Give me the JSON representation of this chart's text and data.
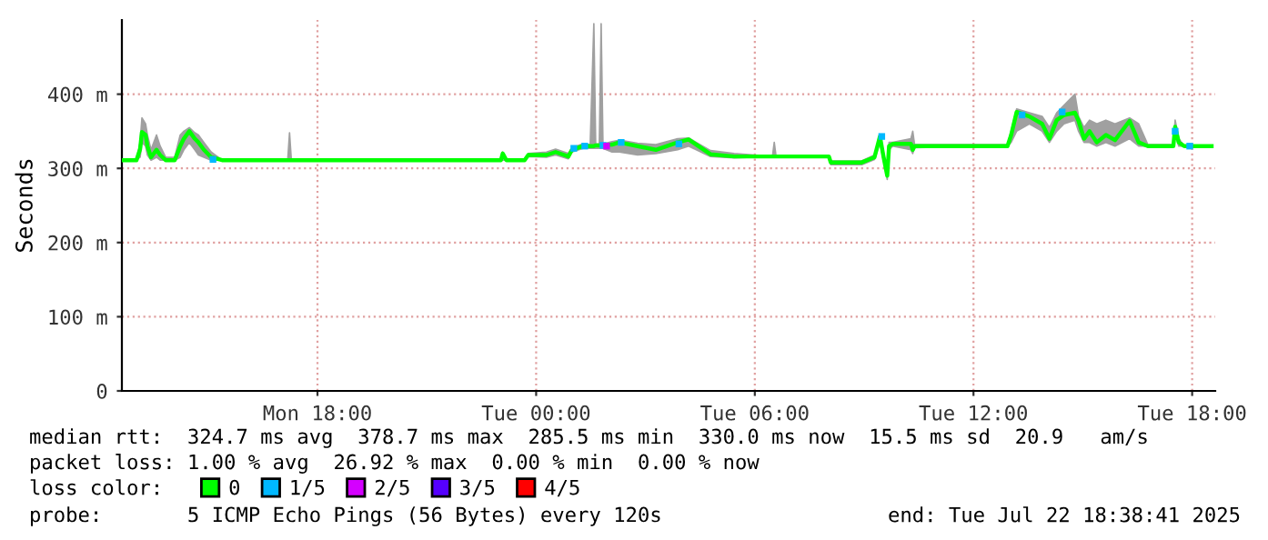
{
  "chart_data": {
    "type": "line",
    "ylabel": "Seconds",
    "xlim": [
      "2025-07-21T12:38",
      "2025-07-22T18:38"
    ],
    "xticks": [
      {
        "value": "2025-07-21T18:00",
        "label": "Mon 18:00"
      },
      {
        "value": "2025-07-22T00:00",
        "label": "Tue 00:00"
      },
      {
        "value": "2025-07-22T06:00",
        "label": "Tue 06:00"
      },
      {
        "value": "2025-07-22T12:00",
        "label": "Tue 12:00"
      },
      {
        "value": "2025-07-22T18:00",
        "label": "Tue 18:00"
      }
    ],
    "ylim": [
      0,
      500
    ],
    "yticks": [
      0,
      {
        "value": 100,
        "label": "100 m"
      },
      {
        "value": 200,
        "label": "200 m"
      },
      {
        "value": 300,
        "label": "300 m"
      },
      {
        "value": 400,
        "label": "400 m"
      }
    ],
    "grid": true,
    "legend": "bottom",
    "annotations": [
      "median rtt:  324.7 ms avg  378.7 ms max  285.5 ms min  330.0 ms now  15.5 ms sd  20.9   am/s",
      "packet loss: 1.00 % avg  26.92 % max  0.00 % min  0.00 % now",
      "loss color:",
      "probe:       5 ICMP Echo Pings (56 Bytes) every 120s",
      "end: Tue Jul 22 18:38:41 2025"
    ],
    "series": [
      {
        "name": "0",
        "color": "#00ff00",
        "x": [
          "2025-07-21T12:38",
          "2025-07-21T13:02",
          "2025-07-21T13:08",
          "2025-07-21T13:11",
          "2025-07-21T13:17",
          "2025-07-21T13:20",
          "2025-07-21T13:26",
          "2025-07-21T13:35",
          "2025-07-21T13:41",
          "2025-07-21T13:50",
          "2025-07-21T14:05",
          "2025-07-21T14:14",
          "2025-07-21T14:20",
          "2025-07-21T14:29",
          "2025-07-21T14:38",
          "2025-07-21T14:44",
          "2025-07-21T14:53",
          "2025-07-21T15:05",
          "2025-07-21T15:23",
          "2025-07-21T17:11",
          "2025-07-21T17:14",
          "2025-07-21T17:17",
          "2025-07-21T23:02",
          "2025-07-21T23:05",
          "2025-07-21T23:11",
          "2025-07-21T23:41",
          "2025-07-21T23:47",
          "2025-07-22T00:17",
          "2025-07-22T00:32",
          "2025-07-22T00:53",
          "2025-07-22T00:59",
          "2025-07-22T01:17",
          "2025-07-22T01:29",
          "2025-07-22T01:35",
          "2025-07-22T01:38",
          "2025-07-22T01:44",
          "2025-07-22T01:47",
          "2025-07-22T01:50",
          "2025-07-22T02:05",
          "2025-07-22T02:17",
          "2025-07-22T02:47",
          "2025-07-22T03:17",
          "2025-07-22T03:53",
          "2025-07-22T04:11",
          "2025-07-22T04:47",
          "2025-07-22T05:26",
          "2025-07-22T06:29",
          "2025-07-22T06:32",
          "2025-07-22T06:35",
          "2025-07-22T08:02",
          "2025-07-22T08:05",
          "2025-07-22T08:56",
          "2025-07-22T09:17",
          "2025-07-22T09:26",
          "2025-07-22T09:32",
          "2025-07-22T09:38",
          "2025-07-22T09:41",
          "2025-07-22T09:47",
          "2025-07-22T10:17",
          "2025-07-22T10:20",
          "2025-07-22T10:23",
          "2025-07-22T12:56",
          "2025-07-22T13:02",
          "2025-07-22T13:11",
          "2025-07-22T13:32",
          "2025-07-22T13:53",
          "2025-07-22T14:05",
          "2025-07-22T14:17",
          "2025-07-22T14:29",
          "2025-07-22T14:47",
          "2025-07-22T14:53",
          "2025-07-22T15:02",
          "2025-07-22T15:11",
          "2025-07-22T15:23",
          "2025-07-22T15:38",
          "2025-07-22T15:53",
          "2025-07-22T16:17",
          "2025-07-22T16:32",
          "2025-07-22T16:47",
          "2025-07-22T17:29",
          "2025-07-22T17:32",
          "2025-07-22T17:38",
          "2025-07-22T17:47",
          "2025-07-22T18:32"
        ],
        "values": [
          311,
          311,
          326,
          349,
          345,
          330,
          315,
          325,
          318,
          311,
          311,
          330,
          340,
          350,
          340,
          335,
          325,
          315,
          311,
          311,
          311,
          311,
          311,
          320,
          311,
          311,
          318,
          318,
          322,
          316,
          325,
          330,
          330,
          330,
          331,
          331,
          331,
          331,
          332,
          335,
          330,
          325,
          335,
          339,
          319,
          316,
          316,
          316,
          316,
          316,
          308,
          308,
          315,
          343,
          315,
          290,
          330,
          333,
          333,
          325,
          330,
          330,
          345,
          376,
          370,
          360,
          340,
          365,
          372,
          375,
          364,
          340,
          350,
          335,
          345,
          338,
          364,
          335,
          330,
          330,
          356,
          335,
          330,
          330
        ],
        "lower": [
          311,
          311,
          315,
          335,
          330,
          318,
          311,
          315,
          311,
          311,
          311,
          315,
          325,
          335,
          325,
          318,
          315,
          311,
          311,
          311,
          311,
          311,
          311,
          311,
          311,
          311,
          316,
          315,
          318,
          313,
          322,
          327,
          327,
          327,
          327,
          327,
          327,
          327,
          322,
          322,
          318,
          320,
          325,
          330,
          316,
          314,
          316,
          316,
          316,
          316,
          305,
          305,
          312,
          335,
          310,
          285,
          325,
          330,
          325,
          320,
          328,
          330,
          335,
          350,
          360,
          350,
          335,
          350,
          360,
          365,
          350,
          335,
          335,
          330,
          335,
          330,
          340,
          330,
          330,
          330,
          345,
          330,
          330,
          330
        ],
        "upper": [
          311,
          311,
          335,
          368,
          360,
          345,
          325,
          345,
          330,
          315,
          315,
          345,
          350,
          355,
          348,
          345,
          335,
          322,
          311,
          311,
          348,
          311,
          311,
          322,
          311,
          311,
          320,
          322,
          326,
          320,
          328,
          333,
          332,
          495,
          333,
          333,
          495,
          333,
          336,
          338,
          334,
          332,
          340,
          341,
          324,
          320,
          316,
          335,
          316,
          316,
          310,
          310,
          318,
          345,
          320,
          300,
          335,
          335,
          340,
          350,
          332,
          332,
          350,
          380,
          375,
          370,
          355,
          375,
          385,
          400,
          370,
          355,
          365,
          360,
          365,
          360,
          368,
          360,
          332,
          332,
          365,
          340,
          330,
          330
        ]
      },
      {
        "name": "1/5",
        "type": "scatter",
        "marker": "square",
        "color": "#00b8ff",
        "x": [
          "2025-07-21T15:08",
          "2025-07-22T01:02",
          "2025-07-22T01:20",
          "2025-07-22T01:50",
          "2025-07-22T02:20",
          "2025-07-22T03:55",
          "2025-07-22T09:29",
          "2025-07-22T13:20",
          "2025-07-22T14:26",
          "2025-07-22T17:32",
          "2025-07-22T17:56"
        ],
        "values": [
          312,
          327,
          330,
          331,
          335,
          333,
          343,
          372,
          376,
          350,
          330
        ]
      },
      {
        "name": "2/5",
        "type": "scatter",
        "marker": "square",
        "color": "#d400ff",
        "x": [
          "2025-07-22T01:56"
        ],
        "values": [
          330
        ]
      },
      {
        "name": "3/5",
        "type": "scatter",
        "marker": "square",
        "color": "#5500ff"
      },
      {
        "name": "4/5",
        "type": "scatter",
        "marker": "square",
        "color": "#ff0000"
      }
    ]
  }
}
